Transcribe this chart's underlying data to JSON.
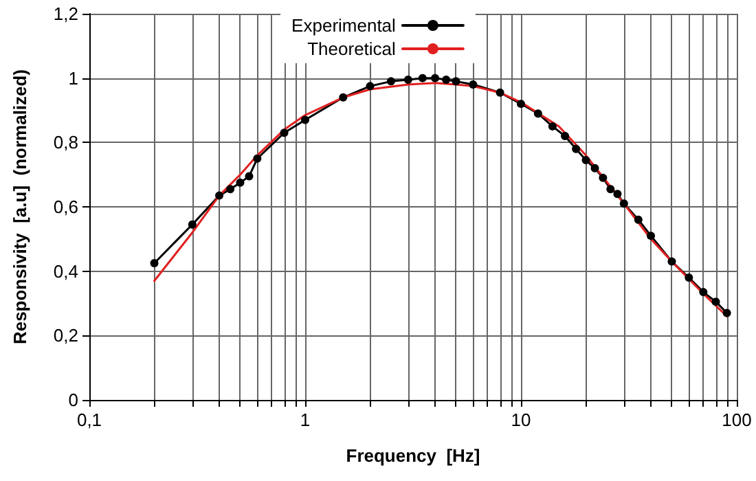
{
  "chart_data": {
    "type": "line",
    "xlabel": "Frequency  [Hz]",
    "ylabel": "Responsivity  [a.u]  (normalized)",
    "log": "x",
    "grid": true,
    "legend": "top",
    "line_style": "solid",
    "xlim": [
      0.1,
      100
    ],
    "ylim": [
      0,
      1.2
    ],
    "xticks": [
      {
        "value": 0.1,
        "label": "0,1"
      },
      {
        "value": 0.2,
        "label": null
      },
      {
        "value": 0.3,
        "label": null
      },
      {
        "value": 0.4,
        "label": null
      },
      {
        "value": 0.5,
        "label": null
      },
      {
        "value": 0.6,
        "label": null
      },
      {
        "value": 0.7,
        "label": null
      },
      {
        "value": 0.8,
        "label": null
      },
      {
        "value": 0.9,
        "label": null
      },
      1,
      {
        "value": 2,
        "label": null
      },
      {
        "value": 3,
        "label": null
      },
      {
        "value": 4,
        "label": null
      },
      {
        "value": 5,
        "label": null
      },
      {
        "value": 6,
        "label": null
      },
      {
        "value": 7,
        "label": null
      },
      {
        "value": 8,
        "label": null
      },
      {
        "value": 9,
        "label": null
      },
      10,
      {
        "value": 20,
        "label": null
      },
      {
        "value": 30,
        "label": null
      },
      {
        "value": 40,
        "label": null
      },
      {
        "value": 50,
        "label": null
      },
      {
        "value": 60,
        "label": null
      },
      {
        "value": 70,
        "label": null
      },
      {
        "value": 80,
        "label": null
      },
      {
        "value": 90,
        "label": null
      },
      100
    ],
    "yticks": [
      0,
      {
        "value": 0.2,
        "label": "0,2"
      },
      {
        "value": 0.4,
        "label": "0,4"
      },
      {
        "value": 0.6,
        "label": "0,6"
      },
      {
        "value": 0.8,
        "label": "0,8"
      },
      1,
      {
        "value": 1.2,
        "label": "1,2"
      }
    ],
    "series": [
      {
        "name": "Experimental",
        "color": "#000000",
        "marker": "circle",
        "x": [
          0.2,
          0.3,
          0.4,
          0.45,
          0.5,
          0.55,
          0.6,
          0.8,
          1,
          1.5,
          2,
          2.5,
          3,
          3.5,
          4,
          4.5,
          5,
          6,
          8,
          10,
          12,
          14,
          16,
          18,
          20,
          22,
          24,
          26,
          28,
          30,
          35,
          40,
          50,
          60,
          70,
          80,
          90
        ],
        "values": [
          0.425,
          0.545,
          0.635,
          0.655,
          0.675,
          0.695,
          0.75,
          0.83,
          0.87,
          0.94,
          0.975,
          0.99,
          0.995,
          1.0,
          1.0,
          0.995,
          0.99,
          0.98,
          0.955,
          0.92,
          0.89,
          0.85,
          0.82,
          0.78,
          0.745,
          0.72,
          0.69,
          0.655,
          0.64,
          0.61,
          0.56,
          0.51,
          0.43,
          0.38,
          0.335,
          0.305,
          0.27
        ]
      },
      {
        "name": "Theoretical",
        "color": "#e02020",
        "marker": "none",
        "x": [
          0.2,
          0.3,
          0.4,
          0.5,
          0.6,
          0.8,
          1,
          1.5,
          2,
          3,
          4,
          5,
          6,
          8,
          10,
          15,
          20,
          30,
          40,
          50,
          70,
          90
        ],
        "values": [
          0.37,
          0.52,
          0.635,
          0.7,
          0.76,
          0.84,
          0.885,
          0.94,
          0.965,
          0.98,
          0.985,
          0.98,
          0.975,
          0.955,
          0.925,
          0.85,
          0.76,
          0.61,
          0.5,
          0.43,
          0.33,
          0.26
        ]
      }
    ]
  }
}
